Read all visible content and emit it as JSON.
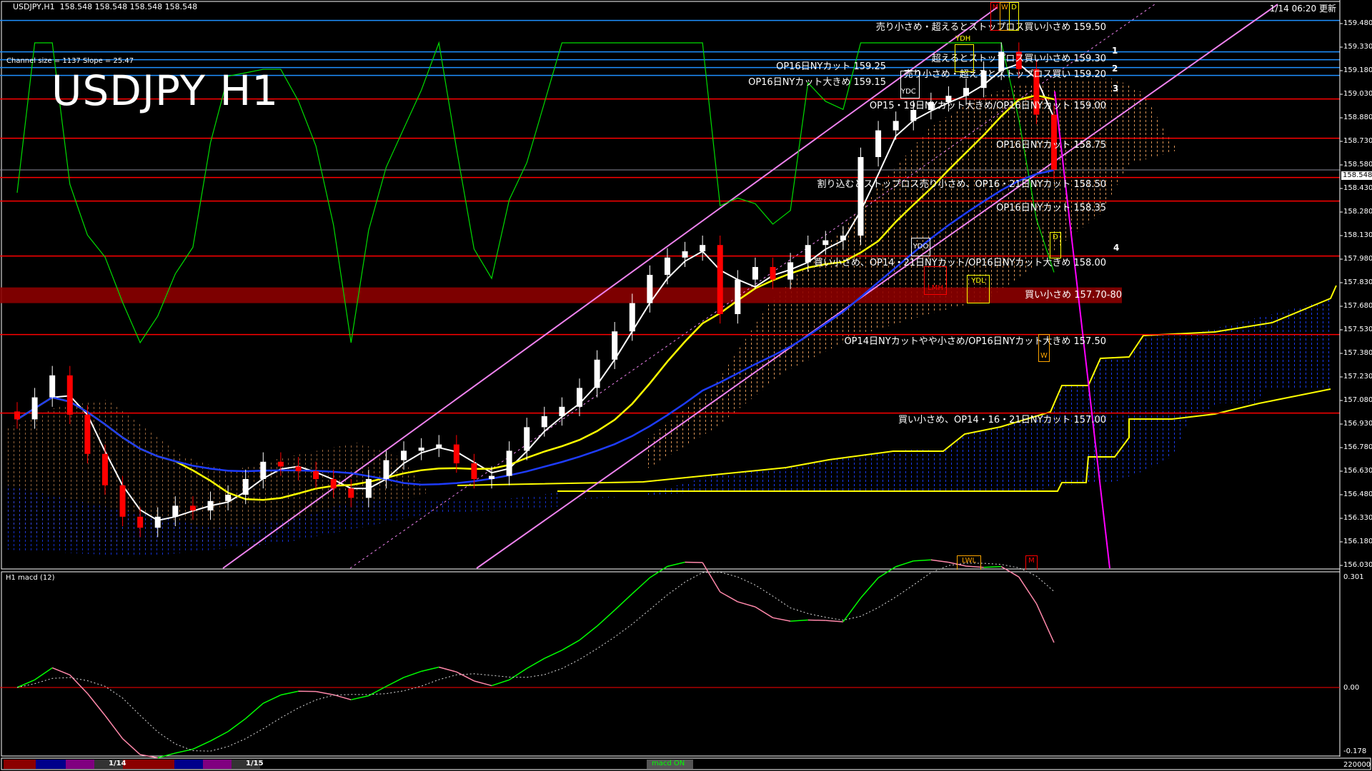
{
  "header": {
    "title": "USDJPY,H1",
    "ohlc": "158.548 158.548 158.548 158.548",
    "channel_info": "Channel size = 1137 Slope = 25.47",
    "watermark": "USDJPY H1",
    "updated": "1/14 06:20 更新"
  },
  "colors": {
    "background": "#000000",
    "bull": "#ffffff",
    "bear": "#ff0000",
    "resistance": "#1e90ff",
    "level": "#ff0000",
    "channel": "#ee82ee",
    "zone": "#8b0000",
    "ma_fast": "#ffffff",
    "ma_mid": "#ffff00",
    "ma_slow": "#0000ff",
    "oscillator": "#00ff00"
  },
  "price_axis": {
    "ticks": [
      "159.480",
      "159.330",
      "159.180",
      "159.030",
      "158.880",
      "158.730",
      "158.580",
      "158.430",
      "158.280",
      "158.130",
      "157.980",
      "157.830",
      "157.680",
      "157.530",
      "157.380",
      "157.230",
      "157.080",
      "156.930",
      "156.780",
      "156.630",
      "156.480",
      "156.330",
      "156.180",
      "156.030"
    ],
    "current": "158.548"
  },
  "levels": [
    {
      "price": 159.5,
      "color": "#1e90ff",
      "label": "売り小さめ・超えるとストップロス買い小さめ 159.50"
    },
    {
      "price": 159.3,
      "color": "#1e90ff",
      "label": "超えるとストップロス買い小さめ 159.30"
    },
    {
      "price": 159.25,
      "color": "#1e90ff",
      "label": "OP16日NYカット 159.25"
    },
    {
      "price": 159.2,
      "color": "#1e90ff",
      "label": "売り小さめ・超えるとストップロス買い 159.20"
    },
    {
      "price": 159.15,
      "color": "#1e90ff",
      "label": "OP16日NYカット大きめ 159.15"
    },
    {
      "price": 159.0,
      "color": "#ff0000",
      "label": "OP15・19日NYカット大きめ/OP16日NYカット 159.00"
    },
    {
      "price": 158.75,
      "color": "#ff0000",
      "label": "OP16日NYカット 158.75"
    },
    {
      "price": 158.5,
      "color": "#ff0000",
      "label": "割り込むとストップロス売り小さめ、OP16・21日NYカット 158.50"
    },
    {
      "price": 158.35,
      "color": "#ff0000",
      "label": "OP16日NYカット 158.35"
    },
    {
      "price": 158.0,
      "color": "#ff0000",
      "label": "買い小さめ、OP14・21日NYカット/OP16日NYカット大きめ 158.00"
    },
    {
      "price": 157.5,
      "color": "#ff0000",
      "label": "OP14日NYカットやや小さめ/OP16日NYカット大きめ 157.50"
    },
    {
      "price": 157.0,
      "color": "#ff0000",
      "label": "買い小さめ、OP14・16・21日NYカット 157.00"
    }
  ],
  "zone": {
    "low": 157.7,
    "high": 157.8,
    "label": "買い小さめ 157.70-80"
  },
  "markers": {
    "M1": "M",
    "W1": "W",
    "D1": "D",
    "YDH": "YDH",
    "YDC": "YDC",
    "YDO": "YDO",
    "YDL": "YDL",
    "LMH": "LMH",
    "W2": "W",
    "D2": "D",
    "LWL": "LWL",
    "M2": "M",
    "n1": "1",
    "n2": "2",
    "n3": "3",
    "n4": "4"
  },
  "macd_panel": {
    "title": "H1  macd (12)",
    "top": "0.301",
    "zero": "0.00",
    "bottom": "-0.178",
    "volume": "220000"
  },
  "bottom_bar": {
    "date1": "1/14",
    "date2": "1/15",
    "toggle": "macd ON"
  },
  "chart_data": {
    "type": "candlestick",
    "timeframe": "H1",
    "ylim": [
      156.03,
      159.55
    ],
    "closes": [
      156.96,
      157.1,
      157.24,
      156.99,
      156.74,
      156.54,
      156.34,
      156.27,
      156.34,
      156.41,
      156.38,
      156.44,
      156.48,
      156.58,
      156.69,
      156.66,
      156.63,
      156.58,
      156.52,
      156.46,
      156.58,
      156.7,
      156.76,
      156.78,
      156.8,
      156.68,
      156.58,
      156.6,
      156.76,
      156.91,
      156.98,
      157.04,
      157.16,
      157.34,
      157.52,
      157.7,
      157.88,
      157.99,
      158.03,
      158.07,
      157.63,
      157.85,
      157.93,
      157.85,
      157.96,
      158.07,
      158.1,
      158.13,
      158.63,
      158.8,
      158.86,
      158.93,
      158.98,
      159.02,
      159.07,
      159.18,
      159.3,
      159.19,
      158.9,
      158.55
    ]
  }
}
